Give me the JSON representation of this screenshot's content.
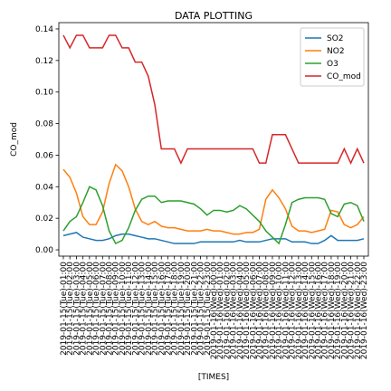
{
  "chart_data": {
    "type": "line",
    "title": "DATA PLOTTING",
    "xlabel": "[TIMES]",
    "ylabel": "CO_mod",
    "categories": [
      "2019-01-15(Tue)-01:00",
      "2019-01-15(Tue)-02:00",
      "2019-01-15(Tue)-03:00",
      "2019-01-15(Tue)-04:00",
      "2019-01-15(Tue)-05:00",
      "2019-01-15(Tue)-06:00",
      "2019-01-15(Tue)-07:00",
      "2019-01-15(Tue)-08:00",
      "2019-01-15(Tue)-09:00",
      "2019-01-15(Tue)-10:00",
      "2019-01-15(Tue)-11:00",
      "2019-01-15(Tue)-12:00",
      "2019-01-15(Tue)-13:00",
      "2019-01-15(Tue)-14:00",
      "2019-01-15(Tue)-15:00",
      "2019-01-15(Tue)-16:00",
      "2019-01-15(Tue)-17:00",
      "2019-01-15(Tue)-18:00",
      "2019-01-15(Tue)-19:00",
      "2019-01-15(Tue)-20:00",
      "2019-01-15(Tue)-21:00",
      "2019-01-15(Tue)-22:00",
      "2019-01-15(Tue)-23:00",
      "2019-01-16(Wed)-00:00",
      "2019-01-16(Wed)-01:00",
      "2019-01-16(Wed)-02:00",
      "2019-01-16(Wed)-03:00",
      "2019-01-16(Wed)-04:00",
      "2019-01-16(Wed)-05:00",
      "2019-01-16(Wed)-06:00",
      "2019-01-16(Wed)-07:00",
      "2019-01-16(Wed)-08:00",
      "2019-01-16(Wed)-09:00",
      "2019-01-16(Wed)-10:00",
      "2019-01-16(Wed)-11:00",
      "2019-01-16(Wed)-12:00",
      "2019-01-16(Wed)-13:00",
      "2019-01-16(Wed)-14:00",
      "2019-01-16(Wed)-15:00",
      "2019-01-16(Wed)-16:00",
      "2019-01-16(Wed)-17:00",
      "2019-01-16(Wed)-18:00",
      "2019-01-16(Wed)-19:00",
      "2019-01-16(Wed)-20:00",
      "2019-01-16(Wed)-21:00",
      "2019-01-16(Wed)-22:00",
      "2019-01-16(Wed)-23:00"
    ],
    "series": [
      {
        "name": "SO2",
        "color": "#1f77b4",
        "values": [
          0.009,
          0.01,
          0.011,
          0.008,
          0.007,
          0.006,
          0.006,
          0.007,
          0.009,
          0.01,
          0.01,
          0.009,
          0.008,
          0.007,
          0.007,
          0.006,
          0.005,
          0.004,
          0.004,
          0.004,
          0.004,
          0.005,
          0.005,
          0.005,
          0.005,
          0.005,
          0.005,
          0.006,
          0.005,
          0.005,
          0.005,
          0.006,
          0.007,
          0.007,
          0.007,
          0.005,
          0.005,
          0.005,
          0.004,
          0.004,
          0.006,
          0.009,
          0.006,
          0.006,
          0.006,
          0.006,
          0.007
        ]
      },
      {
        "name": "NO2",
        "color": "#ff7f0e",
        "values": [
          0.051,
          0.046,
          0.036,
          0.021,
          0.016,
          0.016,
          0.024,
          0.042,
          0.054,
          0.05,
          0.04,
          0.026,
          0.018,
          0.016,
          0.018,
          0.015,
          0.014,
          0.014,
          0.013,
          0.012,
          0.012,
          0.012,
          0.013,
          0.012,
          0.012,
          0.011,
          0.01,
          0.01,
          0.011,
          0.011,
          0.013,
          0.032,
          0.038,
          0.033,
          0.026,
          0.015,
          0.012,
          0.012,
          0.011,
          0.012,
          0.013,
          0.025,
          0.024,
          0.016,
          0.014,
          0.016,
          0.021
        ]
      },
      {
        "name": "O3",
        "color": "#2ca02c",
        "values": [
          0.012,
          0.018,
          0.021,
          0.03,
          0.04,
          0.038,
          0.028,
          0.012,
          0.004,
          0.006,
          0.014,
          0.025,
          0.032,
          0.034,
          0.034,
          0.03,
          0.031,
          0.031,
          0.031,
          0.03,
          0.029,
          0.026,
          0.022,
          0.025,
          0.025,
          0.024,
          0.025,
          0.028,
          0.026,
          0.022,
          0.018,
          0.012,
          0.008,
          0.004,
          0.016,
          0.03,
          0.032,
          0.033,
          0.033,
          0.033,
          0.032,
          0.023,
          0.021,
          0.029,
          0.03,
          0.028,
          0.018
        ]
      },
      {
        "name": "CO_mod",
        "color": "#d62728",
        "values": [
          0.136,
          0.128,
          0.136,
          0.136,
          0.128,
          0.128,
          0.128,
          0.136,
          0.136,
          0.128,
          0.128,
          0.119,
          0.119,
          0.11,
          0.092,
          0.064,
          0.064,
          0.064,
          0.055,
          0.064,
          0.064,
          0.064,
          0.064,
          0.064,
          0.064,
          0.064,
          0.064,
          0.064,
          0.064,
          0.064,
          0.055,
          0.055,
          0.073,
          0.073,
          0.073,
          0.064,
          0.055,
          0.055,
          0.055,
          0.055,
          0.055,
          0.055,
          0.055,
          0.064,
          0.055,
          0.064,
          0.055
        ]
      }
    ],
    "ylim": [
      -0.004,
      0.144
    ],
    "yticks": [
      {
        "value": 0,
        "label": "0.00"
      },
      0.02,
      0.04,
      0.06,
      0.08,
      {
        "value": 0.1,
        "label": "0.10"
      },
      0.12,
      0.14
    ],
    "legend": "upper right"
  }
}
